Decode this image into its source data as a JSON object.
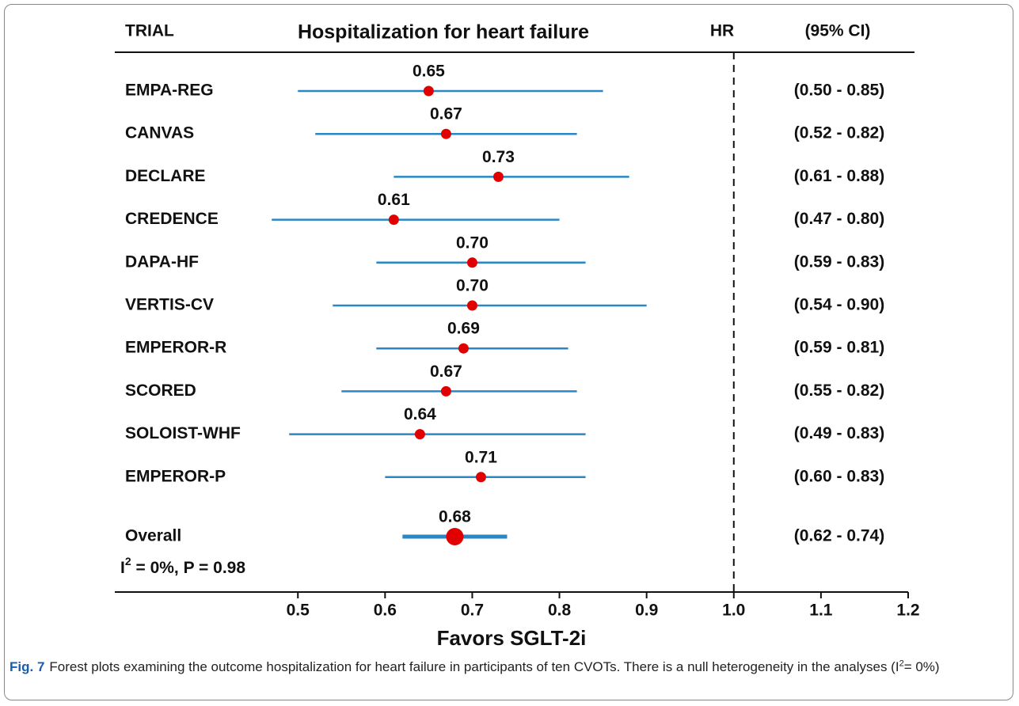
{
  "chart_data": {
    "type": "forest",
    "title": "Hospitalization for heart failure",
    "headers": {
      "trial": "TRIAL",
      "hr": "HR",
      "ci": "(95% CI)"
    },
    "categories": [
      "EMPA-REG",
      "CANVAS",
      "DECLARE",
      "CREDENCE",
      "DAPA-HF",
      "VERTIS-CV",
      "EMPEROR-R",
      "SCORED",
      "SOLOIST-WHF",
      "EMPEROR-P"
    ],
    "values": [
      0.65,
      0.67,
      0.73,
      0.61,
      0.7,
      0.7,
      0.69,
      0.67,
      0.64,
      0.71
    ],
    "value_labels": [
      "0.65",
      "0.67",
      "0.73",
      "0.61",
      "0.70",
      "0.70",
      "0.69",
      "0.67",
      "0.64",
      "0.71"
    ],
    "ci_low": [
      0.5,
      0.52,
      0.61,
      0.47,
      0.59,
      0.54,
      0.59,
      0.55,
      0.49,
      0.6
    ],
    "ci_high": [
      0.85,
      0.82,
      0.88,
      0.8,
      0.83,
      0.9,
      0.81,
      0.82,
      0.83,
      0.83
    ],
    "ci_labels": [
      "(0.50 - 0.85)",
      "(0.52 - 0.82)",
      "(0.61 - 0.88)",
      "(0.47 - 0.80)",
      "(0.59 - 0.83)",
      "(0.54 - 0.90)",
      "(0.59 - 0.81)",
      "(0.55 - 0.82)",
      "(0.49 - 0.83)",
      "(0.60 - 0.83)"
    ],
    "overall": {
      "name": "Overall",
      "value": 0.68,
      "value_label": "0.68",
      "ci_low": 0.62,
      "ci_high": 0.74,
      "ci_label": "(0.62 - 0.74)"
    },
    "heterogeneity": {
      "symbol": "I",
      "superscript": "2",
      "text": " = 0%, P = 0.98"
    },
    "xlabel": "Favors SGLT-2i",
    "xlim": [
      0.29,
      1.2
    ],
    "xticks": [
      0.5,
      0.6,
      0.7,
      0.8,
      0.9,
      {
        "value": 1,
        "label": "1.0"
      },
      1.1,
      1.2
    ],
    "reference_line": 1,
    "line_color": "#2a86c4",
    "point_color": "#e00000"
  },
  "caption": {
    "label": "Fig. 7",
    "text": "Forest plots examining the outcome hospitalization for heart failure in participants of ten CVOTs. There is a null heterogeneity in the analyses (I",
    "superscript": "2",
    "text_end": "= 0%)"
  }
}
